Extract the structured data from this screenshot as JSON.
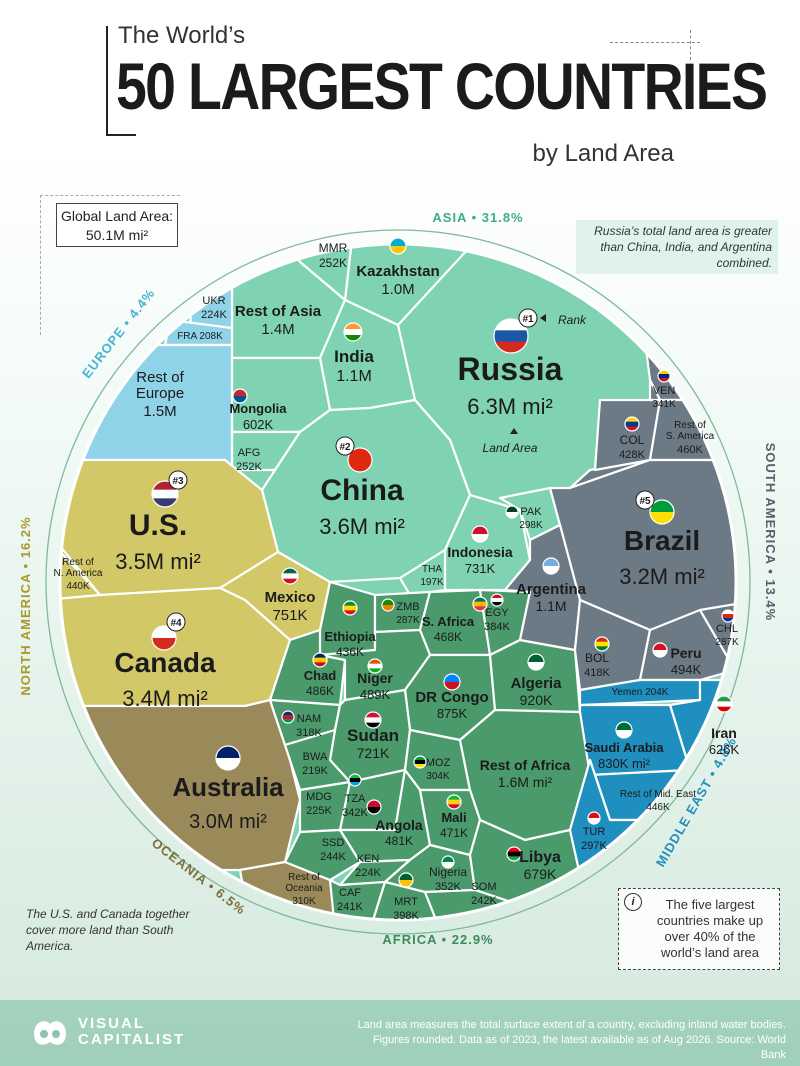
{
  "header": {
    "title_small": "The World’s",
    "title_big": "50 LARGEST COUNTRIES",
    "subtitle": "by Land Area"
  },
  "global_area": {
    "label": "Global Land Area:",
    "value": "50.1M mi²"
  },
  "notes": {
    "russia": "Russia’s total land area is greater than China, India, and Argentina combined.",
    "us_canada": "The U.S. and Canada together cover more land than South America.",
    "five_largest": "The five largest countries make up over 40% of the world’s land area"
  },
  "annotations": {
    "rank": "Rank",
    "land_area": "Land Area"
  },
  "footer": {
    "logo_line1": "VISUAL",
    "logo_line2": "CAPITALIST",
    "source": "Land area measures the total surface extent of a country, excluding inland water bodies. Figures rounded. Data as of 2023, the latest available as of Aug 2026. Source: World Bank"
  },
  "colors": {
    "asia": "#7fd3b3",
    "europe": "#8ed3e8",
    "north_america": "#d2c868",
    "oceania": "#9a8a5a",
    "africa": "#4a9a6c",
    "south_america": "#6c7a86",
    "middle_east": "#1f8fbf"
  },
  "chart_data": {
    "type": "voronoi-treemap",
    "title": "The World’s 50 Largest Countries by Land Area",
    "total_label": "Global Land Area: 50.1M mi²",
    "continents": [
      {
        "name": "ASIA",
        "share": "31.8%"
      },
      {
        "name": "EUROPE",
        "share": "4.4%"
      },
      {
        "name": "NORTH AMERICA",
        "share": "16.2%"
      },
      {
        "name": "OCEANIA",
        "share": "6.5%"
      },
      {
        "name": "AFRICA",
        "share": "22.9%"
      },
      {
        "name": "MIDDLE EAST",
        "share": "4.8%"
      },
      {
        "name": "SOUTH AMERICA",
        "share": "13.4%"
      }
    ],
    "cells": [
      {
        "name": "Russia",
        "value": "6.3M mi²",
        "rank": "#1",
        "continent": "asia",
        "flag": "RUS"
      },
      {
        "name": "China",
        "value": "3.6M mi²",
        "rank": "#2",
        "continent": "asia",
        "flag": "CHN"
      },
      {
        "name": "U.S.",
        "value": "3.5M mi²",
        "rank": "#3",
        "continent": "north_america",
        "flag": "USA"
      },
      {
        "name": "Canada",
        "value": "3.4M mi²",
        "rank": "#4",
        "continent": "north_america",
        "flag": "CAN"
      },
      {
        "name": "Brazil",
        "value": "3.2M mi²",
        "rank": "#5",
        "continent": "south_america",
        "flag": "BRA"
      },
      {
        "name": "Australia",
        "value": "3.0M mi²",
        "continent": "oceania",
        "flag": "AUS"
      },
      {
        "name": "Rest of Africa",
        "value": "1.6M mi²",
        "continent": "africa"
      },
      {
        "name": "Rest of Europe",
        "value": "1.5M",
        "continent": "europe"
      },
      {
        "name": "Rest of Asia",
        "value": "1.4M",
        "continent": "asia"
      },
      {
        "name": "India",
        "value": "1.1M",
        "continent": "asia",
        "flag": "IND"
      },
      {
        "name": "Argentina",
        "value": "1.1M",
        "continent": "south_america",
        "flag": "ARG"
      },
      {
        "name": "Kazakhstan",
        "value": "1.0M",
        "continent": "asia",
        "flag": "KAZ"
      },
      {
        "name": "Algeria",
        "value": "920K",
        "continent": "africa",
        "flag": "DZA"
      },
      {
        "name": "DR Congo",
        "value": "875K",
        "continent": "africa",
        "flag": "COD"
      },
      {
        "name": "Saudi Arabia",
        "value": "830K mi²",
        "continent": "middle_east",
        "flag": "SAU"
      },
      {
        "name": "Mexico",
        "value": "751K",
        "continent": "north_america",
        "flag": "MEX"
      },
      {
        "name": "Indonesia",
        "value": "731K",
        "continent": "asia",
        "flag": "IDN"
      },
      {
        "name": "Sudan",
        "value": "721K",
        "continent": "africa",
        "flag": "SDN"
      },
      {
        "name": "Libya",
        "value": "679K",
        "continent": "africa",
        "flag": "LBY"
      },
      {
        "name": "Iran",
        "value": "626K",
        "continent": "middle_east",
        "flag": "IRN"
      },
      {
        "name": "Mongolia",
        "value": "602K",
        "continent": "asia",
        "flag": "MNG"
      },
      {
        "name": "Peru",
        "value": "494K",
        "continent": "south_america",
        "flag": "PER"
      },
      {
        "name": "Niger",
        "value": "489K",
        "continent": "africa",
        "flag": "NER"
      },
      {
        "name": "Chad",
        "value": "486K",
        "continent": "africa",
        "flag": "TCD"
      },
      {
        "name": "Angola",
        "value": "481K",
        "continent": "africa",
        "flag": "AGO"
      },
      {
        "name": "Mali",
        "value": "471K",
        "continent": "africa",
        "flag": "MLI"
      },
      {
        "name": "S. Africa",
        "value": "468K",
        "continent": "africa",
        "flag": "ZAF"
      },
      {
        "name": "Rest of S. America",
        "value": "460K",
        "continent": "south_america"
      },
      {
        "name": "Rest of Mid. East",
        "value": "446K",
        "continent": "middle_east"
      },
      {
        "name": "Rest of N. America",
        "value": "440K",
        "continent": "north_america"
      },
      {
        "name": "Ethiopia",
        "value": "436K",
        "continent": "africa",
        "flag": "ETH"
      },
      {
        "name": "COL",
        "value": "428K",
        "continent": "south_america",
        "flag": "COL"
      },
      {
        "name": "BOL",
        "value": "418K",
        "continent": "south_america",
        "flag": "BOL"
      },
      {
        "name": "MRT",
        "value": "398K",
        "continent": "africa",
        "flag": "MRT"
      },
      {
        "name": "EGY",
        "value": "384K",
        "continent": "africa",
        "flag": "EGY"
      },
      {
        "name": "Nigeria",
        "value": "352K",
        "continent": "africa",
        "flag": "NGA"
      },
      {
        "name": "TZA",
        "value": "342K",
        "continent": "africa",
        "flag": "TZA"
      },
      {
        "name": "VEN",
        "value": "341K",
        "continent": "south_america",
        "flag": "VEN"
      },
      {
        "name": "NAM",
        "value": "318K",
        "continent": "africa",
        "flag": "NAM"
      },
      {
        "name": "Rest of Oceania",
        "value": "310K",
        "continent": "oceania"
      },
      {
        "name": "MOZ",
        "value": "304K",
        "continent": "africa",
        "flag": "MOZ"
      },
      {
        "name": "PAK",
        "value": "298K",
        "continent": "asia",
        "flag": "PAK"
      },
      {
        "name": "TUR",
        "value": "297K",
        "continent": "middle_east",
        "flag": "TUR"
      },
      {
        "name": "ZMB",
        "value": "287K",
        "continent": "africa",
        "flag": "ZMB"
      },
      {
        "name": "CHL",
        "value": "287K",
        "continent": "south_america",
        "flag": "CHL"
      },
      {
        "name": "MMR",
        "value": "252K",
        "continent": "asia"
      },
      {
        "name": "AFG",
        "value": "252K",
        "continent": "asia"
      },
      {
        "name": "SSD",
        "value": "244K",
        "continent": "africa"
      },
      {
        "name": "SOM",
        "value": "242K",
        "continent": "africa"
      },
      {
        "name": "CAF",
        "value": "241K",
        "continent": "africa"
      },
      {
        "name": "KEN",
        "value": "224K",
        "continent": "africa"
      },
      {
        "name": "UKR",
        "value": "224K",
        "continent": "europe"
      },
      {
        "name": "MDG",
        "value": "225K",
        "continent": "africa"
      },
      {
        "name": "BWA",
        "value": "219K",
        "continent": "africa"
      },
      {
        "name": "FRA",
        "value": "208K",
        "continent": "europe"
      },
      {
        "name": "Yemen",
        "value": "204K",
        "continent": "middle_east"
      },
      {
        "name": "THA",
        "value": "197K",
        "continent": "asia"
      }
    ]
  }
}
